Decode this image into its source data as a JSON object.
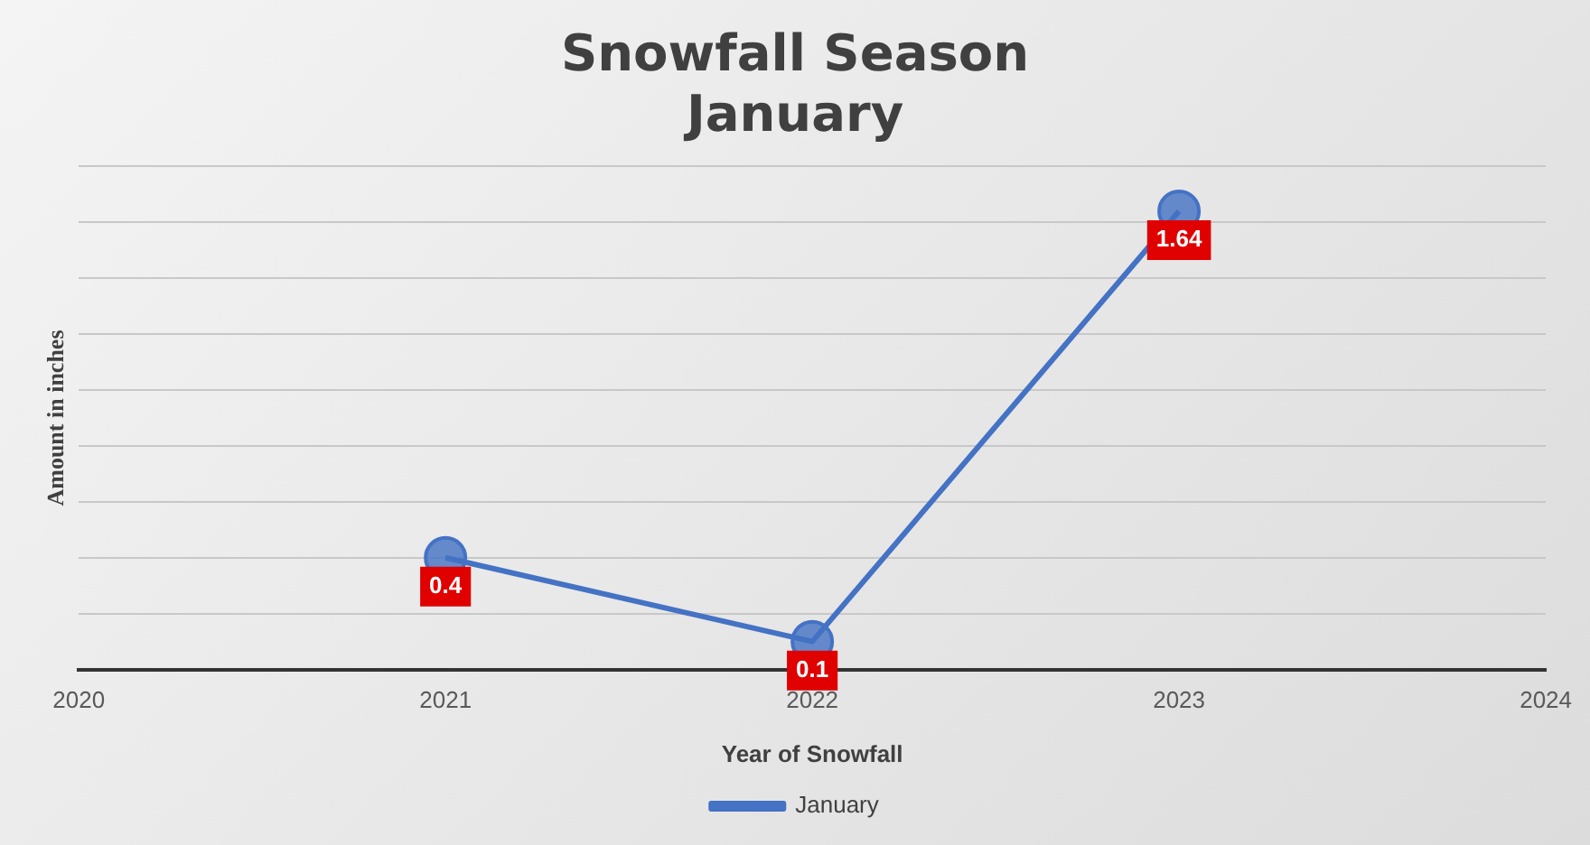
{
  "chart_data": {
    "type": "line",
    "title": "Snowfall Season\nJanuary",
    "xlabel": "Year of Snowfall",
    "ylabel": "Amount in inches",
    "categories": [
      "2020",
      "2021",
      "2022",
      "2023",
      "2024"
    ],
    "series": [
      {
        "name": "January",
        "color": "#4472c4",
        "values": [
          null,
          0.4,
          0.1,
          1.64,
          null
        ]
      }
    ],
    "ylim": [
      0,
      1.8
    ],
    "yticks": [
      {
        "value": 0,
        "label": null
      },
      {
        "value": 0.2,
        "label": null
      },
      {
        "value": 0.4,
        "label": null
      },
      {
        "value": 0.6,
        "label": null
      },
      {
        "value": 0.8,
        "label": null
      },
      {
        "value": 1,
        "label": null
      },
      {
        "value": 1.2,
        "label": null
      },
      {
        "value": 1.4,
        "label": null
      },
      {
        "value": 1.6,
        "label": null
      },
      {
        "value": 1.8,
        "label": null
      }
    ],
    "tick_labels": "x",
    "grid": "y",
    "legend": "bottom",
    "marker": "circle",
    "line_style": "solid",
    "data_labels": true
  }
}
